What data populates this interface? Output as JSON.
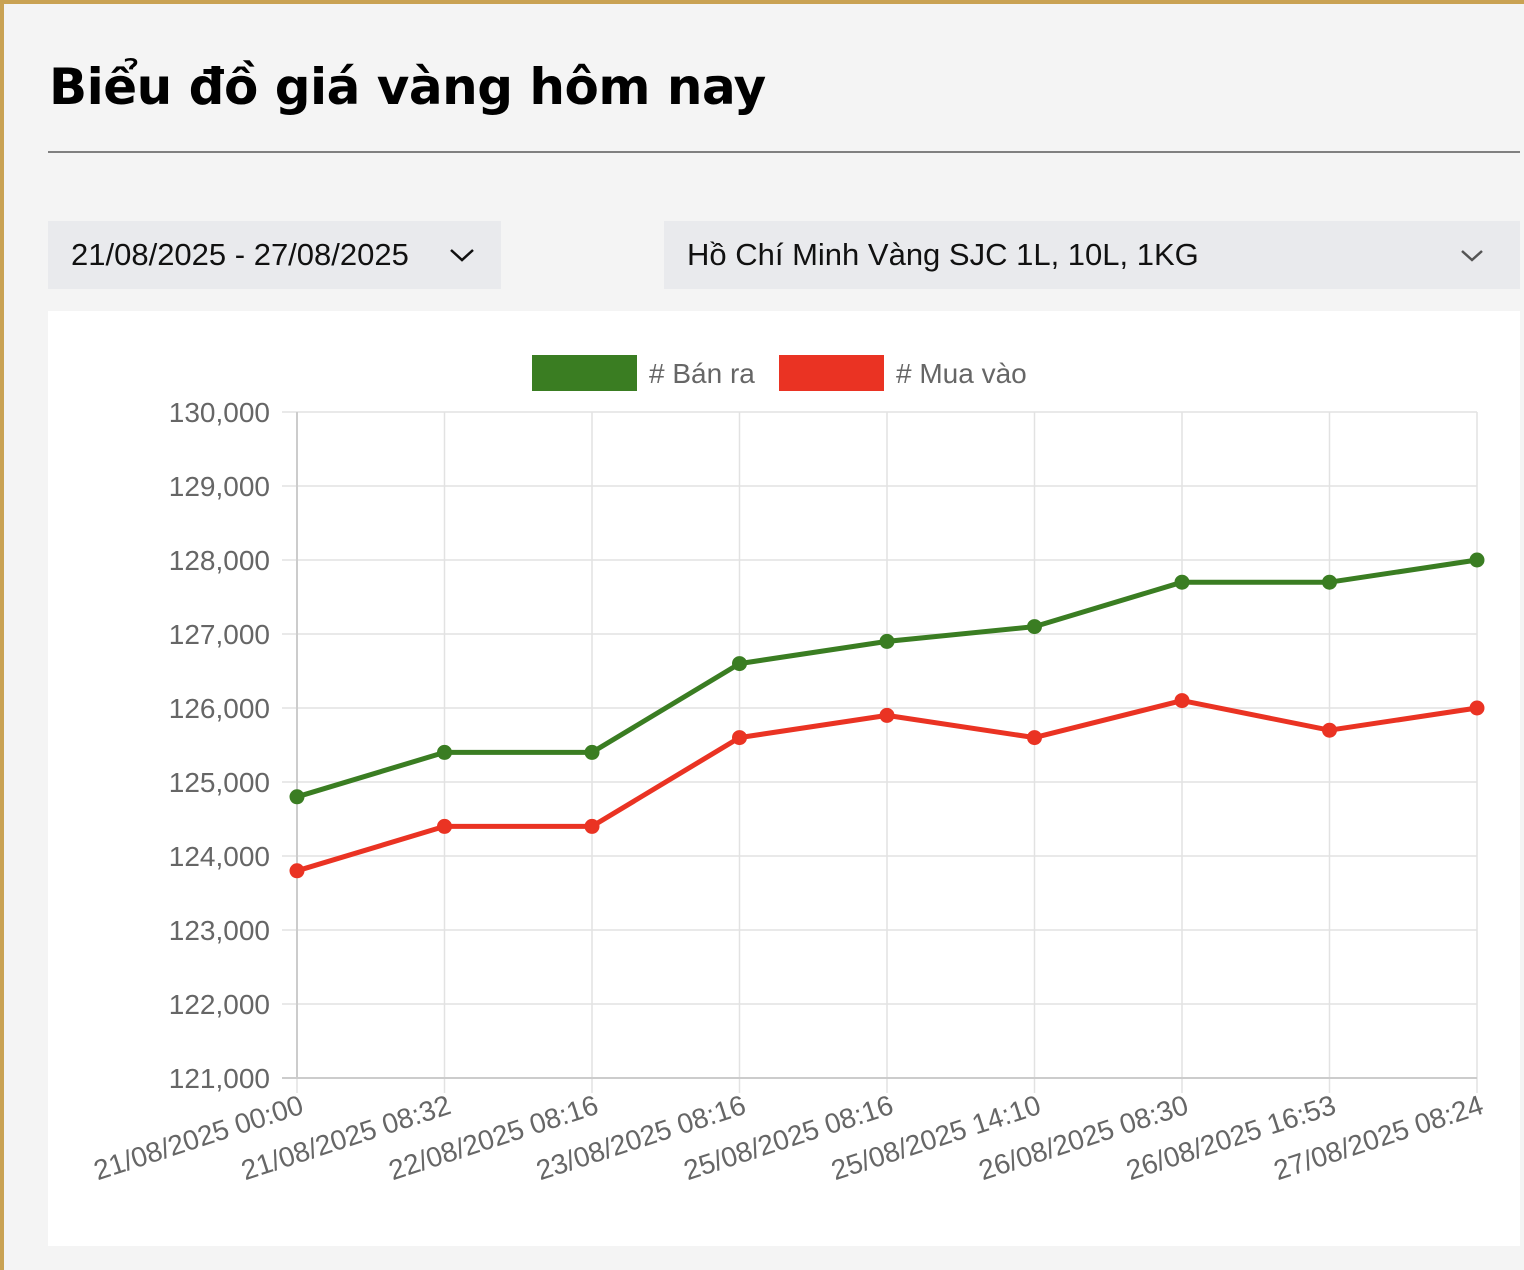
{
  "header": {
    "title": "Biểu đồ giá vàng hôm nay"
  },
  "filters": {
    "date_range": "21/08/2025 - 27/08/2025",
    "product": "Hồ Chí Minh Vàng SJC 1L, 10L, 1KG"
  },
  "colors": {
    "frame": "#c9a253",
    "sell": "#3a7d22",
    "buy": "#ea3323"
  },
  "chart_data": {
    "type": "line",
    "categories": [
      "21/08/2025 00:00",
      "21/08/2025 08:32",
      "22/08/2025 08:16",
      "23/08/2025 08:16",
      "25/08/2025 08:16",
      "25/08/2025 14:10",
      "26/08/2025 08:30",
      "26/08/2025 16:53",
      "27/08/2025 08:24"
    ],
    "series": [
      {
        "name": "# Bán ra",
        "color": "#3a7d22",
        "values": [
          124800,
          125400,
          125400,
          126600,
          126900,
          127100,
          127700,
          127700,
          128000
        ]
      },
      {
        "name": "# Mua vào",
        "color": "#ea3323",
        "values": [
          123800,
          124400,
          124400,
          125600,
          125900,
          125600,
          126100,
          125700,
          126000
        ]
      }
    ],
    "ylim": [
      121000,
      130000
    ],
    "yticks": [
      121000,
      122000,
      123000,
      124000,
      125000,
      126000,
      127000,
      128000,
      129000,
      130000
    ],
    "legend": "top-center",
    "grid": true
  }
}
